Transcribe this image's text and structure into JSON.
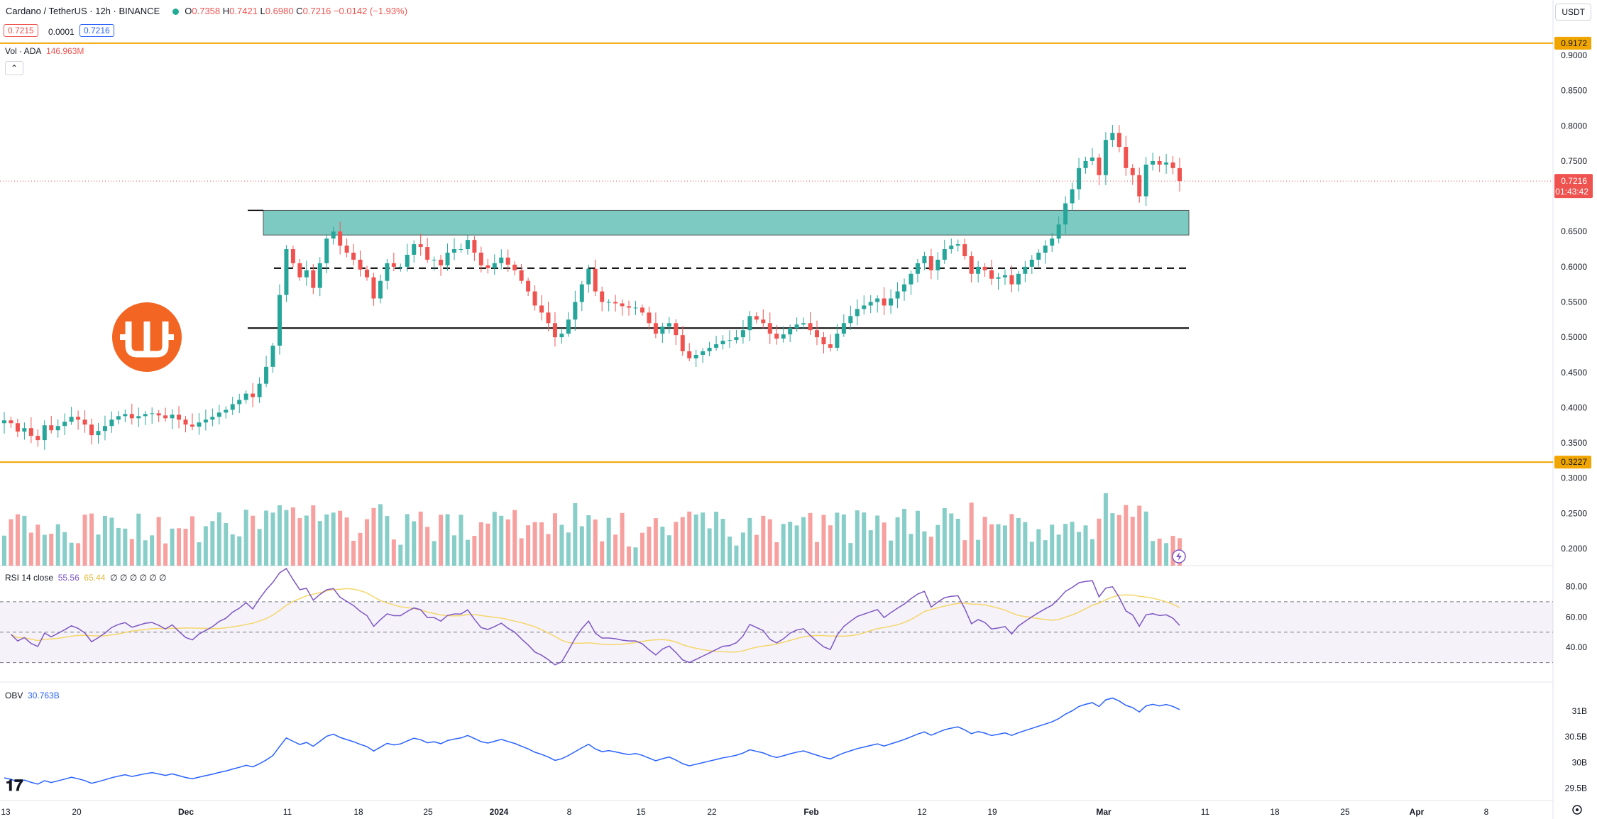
{
  "header": {
    "symbol_title": "Cardano / TetherUS · 12h · BINANCE",
    "ohlc": {
      "o_label": "O",
      "o": "0.7358",
      "h_label": "H",
      "h": "0.7421",
      "l_label": "L",
      "l": "0.6980",
      "c_label": "C",
      "c": "0.7216",
      "change": "−0.0142 (−1.93%)"
    },
    "bid": "0.7215",
    "spread": "0.0001",
    "ask": "0.7216",
    "currency_unit": "USDT",
    "collapse_icon": "chevron-up-icon"
  },
  "volume_pane": {
    "label": "Vol · ADA",
    "value": "146.963M"
  },
  "rsi_pane": {
    "label": "RSI 14 close",
    "rsi": "55.56",
    "ma": "65.44",
    "placeholders": "∅ ∅ ∅ ∅ ∅ ∅",
    "ticks": [
      "80.00",
      "60.00",
      "40.00"
    ],
    "levels": [
      70,
      50,
      30
    ]
  },
  "obv_pane": {
    "label": "OBV",
    "value": "30.763B",
    "ticks": [
      "31B",
      "30.5B",
      "30B",
      "29.5B"
    ]
  },
  "price_axis": {
    "ticks": [
      "0.9000",
      "0.8500",
      "0.8000",
      "0.7500",
      "0.6500",
      "0.6000",
      "0.5500",
      "0.5000",
      "0.4500",
      "0.4000",
      "0.3500",
      "0.3000",
      "0.2500",
      "0.2000"
    ],
    "badges": {
      "upper_line": "0.9172",
      "last_price": "0.7216",
      "countdown": "01:43:42",
      "lower_line": "0.3227"
    }
  },
  "time_axis": {
    "ticks": [
      "13",
      "20",
      "Dec",
      "11",
      "18",
      "25",
      "2024",
      "8",
      "15",
      "22",
      "Feb",
      "12",
      "19",
      "Mar",
      "11",
      "18",
      "25",
      "Apr",
      "8"
    ]
  },
  "colors": {
    "up": "#26a69a",
    "down": "#ef5350",
    "zone": "#26a69a",
    "horizontal_line": "#f0a500",
    "rsi_line": "#7e57c2",
    "rsi_ma": "#f5d66a",
    "obv_line": "#2962ff"
  },
  "chart_data": {
    "type": "candlestick",
    "title": "Cardano / TetherUS · 12h · BINANCE",
    "price_range": [
      0.18,
      0.94
    ],
    "horizontal_lines": [
      0.9172,
      0.3227
    ],
    "last_price": 0.7216,
    "drawings": {
      "supply_zone": [
        0.645,
        0.68
      ],
      "dashed_level": 0.598,
      "support_level": 0.513
    },
    "series_close": [
      0.382,
      0.378,
      0.366,
      0.371,
      0.36,
      0.354,
      0.375,
      0.368,
      0.374,
      0.38,
      0.387,
      0.383,
      0.376,
      0.361,
      0.367,
      0.374,
      0.383,
      0.388,
      0.391,
      0.385,
      0.388,
      0.391,
      0.392,
      0.389,
      0.385,
      0.39,
      0.383,
      0.376,
      0.373,
      0.379,
      0.383,
      0.387,
      0.393,
      0.397,
      0.405,
      0.411,
      0.42,
      0.415,
      0.434,
      0.458,
      0.488,
      0.56,
      0.625,
      0.605,
      0.585,
      0.595,
      0.57,
      0.605,
      0.64,
      0.65,
      0.63,
      0.62,
      0.61,
      0.596,
      0.585,
      0.555,
      0.58,
      0.605,
      0.6,
      0.6,
      0.617,
      0.632,
      0.628,
      0.61,
      0.61,
      0.602,
      0.62,
      0.625,
      0.625,
      0.638,
      0.62,
      0.602,
      0.598,
      0.605,
      0.613,
      0.603,
      0.595,
      0.58,
      0.565,
      0.545,
      0.535,
      0.52,
      0.5,
      0.505,
      0.525,
      0.55,
      0.575,
      0.597,
      0.565,
      0.55,
      0.55,
      0.548,
      0.544,
      0.542,
      0.542,
      0.535,
      0.52,
      0.505,
      0.515,
      0.52,
      0.503,
      0.48,
      0.47,
      0.475,
      0.48,
      0.485,
      0.49,
      0.495,
      0.496,
      0.5,
      0.51,
      0.53,
      0.525,
      0.52,
      0.505,
      0.498,
      0.504,
      0.513,
      0.518,
      0.52,
      0.51,
      0.5,
      0.49,
      0.485,
      0.505,
      0.52,
      0.53,
      0.54,
      0.545,
      0.55,
      0.555,
      0.545,
      0.555,
      0.565,
      0.575,
      0.59,
      0.605,
      0.615,
      0.595,
      0.61,
      0.625,
      0.63,
      0.632,
      0.615,
      0.59,
      0.6,
      0.595,
      0.583,
      0.585,
      0.588,
      0.575,
      0.59,
      0.6,
      0.61,
      0.62,
      0.63,
      0.64,
      0.66,
      0.69,
      0.71,
      0.74,
      0.75,
      0.755,
      0.73,
      0.78,
      0.79,
      0.77,
      0.74,
      0.73,
      0.7,
      0.745,
      0.75,
      0.745,
      0.748,
      0.74,
      0.7216
    ],
    "volume_scale_note": "relative",
    "rsi_range": [
      20,
      90
    ],
    "obv_range": [
      29.3,
      31.3
    ]
  }
}
